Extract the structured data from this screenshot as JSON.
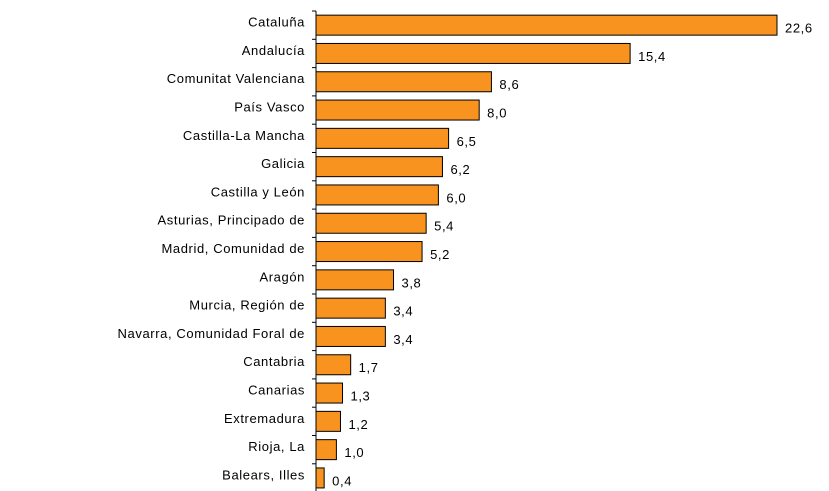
{
  "chart_data": {
    "type": "bar",
    "orientation": "horizontal",
    "categories": [
      "Cataluña",
      "Andalucía",
      "Comunitat Valenciana",
      "País Vasco",
      "Castilla-La Mancha",
      "Galicia",
      "Castilla y León",
      "Asturias, Principado de",
      "Madrid, Comunidad de",
      "Aragón",
      "Murcia, Región de",
      "Navarra, Comunidad Foral de",
      "Cantabria",
      "Canarias",
      "Extremadura",
      "Rioja, La",
      "Balears, Illes"
    ],
    "values": [
      22.6,
      15.4,
      8.6,
      8.0,
      6.5,
      6.2,
      6.0,
      5.4,
      5.2,
      3.8,
      3.4,
      3.4,
      1.7,
      1.3,
      1.2,
      1.0,
      0.4
    ],
    "value_labels": [
      "22,6",
      "15,4",
      "8,6",
      "8,0",
      "6,5",
      "6,2",
      "6,0",
      "5,4",
      "5,2",
      "3,8",
      "3,4",
      "3,4",
      "1,7",
      "1,3",
      "1,2",
      "1,0",
      "0,4"
    ],
    "color": "#f7931e"
  }
}
